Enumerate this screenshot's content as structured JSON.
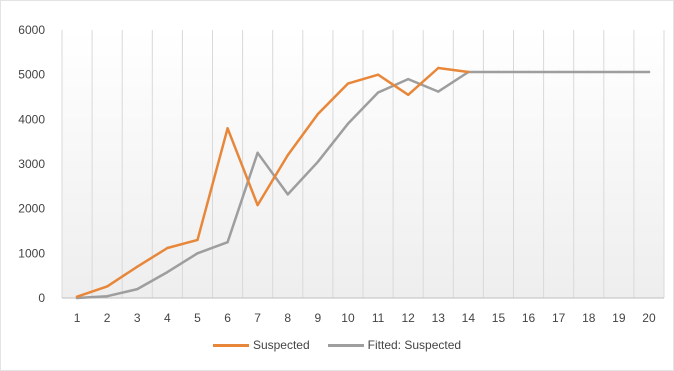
{
  "chart_data": {
    "type": "line",
    "x": [
      1,
      2,
      3,
      4,
      5,
      6,
      7,
      8,
      9,
      10,
      11,
      12,
      13,
      14,
      15,
      16,
      17,
      18,
      19,
      20
    ],
    "categories": [
      "1",
      "2",
      "3",
      "4",
      "5",
      "6",
      "7",
      "8",
      "9",
      "10",
      "11",
      "12",
      "13",
      "14",
      "15",
      "16",
      "17",
      "18",
      "19",
      "20"
    ],
    "y_ticks": [
      "0",
      "1000",
      "2000",
      "3000",
      "4000",
      "5000",
      "6000"
    ],
    "ylim": [
      0,
      6000
    ],
    "grid": "vertical",
    "legend_position": "bottom",
    "title": "",
    "xlabel": "",
    "ylabel": "",
    "series": [
      {
        "name": "Suspected",
        "color": "#e8873a",
        "values": [
          30,
          260,
          700,
          1120,
          1300,
          3800,
          2080,
          3200,
          4120,
          4800,
          5000,
          4550,
          5150,
          5060,
          null,
          null,
          null,
          null,
          null,
          null
        ]
      },
      {
        "name": "Fitted: Suspected",
        "color": "#9e9e9e",
        "values": [
          0,
          40,
          200,
          580,
          1000,
          1250,
          3250,
          2320,
          3050,
          3900,
          4600,
          4900,
          4620,
          5060,
          5060,
          5060,
          5060,
          5060,
          5060,
          5060
        ]
      }
    ]
  }
}
